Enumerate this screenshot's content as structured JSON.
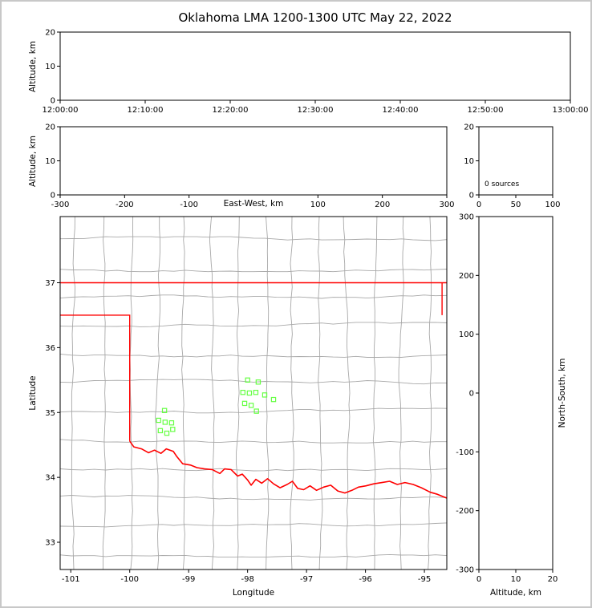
{
  "title": "Oklahoma LMA 1200-1300 UTC May 22, 2022",
  "colors": {
    "county_line": "#a8a8a8",
    "state_border": "#ff0000",
    "river": "#ff0000",
    "station": "#66ff44",
    "axis": "#000000",
    "frame": "#c8c8c8"
  },
  "chart_data": [
    {
      "id": "time_height",
      "type": "scatter",
      "xlabel": "",
      "ylabel": "Altitude, km",
      "x_range": [
        0,
        60
      ],
      "x_tick_pos": [
        0,
        10,
        20,
        30,
        40,
        50,
        60
      ],
      "x_tick_labels": [
        "12:00:00",
        "12:10:00",
        "12:20:00",
        "12:30:00",
        "12:40:00",
        "12:50:00",
        "13:00:00"
      ],
      "y_range": [
        0,
        20
      ],
      "y_tick_pos": [
        0,
        10,
        20
      ],
      "y_tick_labels": [
        "0",
        "10",
        "20"
      ],
      "points": []
    },
    {
      "id": "ew_height",
      "type": "scatter",
      "xlabel": "East-West, km",
      "ylabel": "Altitude, km",
      "x_range": [
        -300,
        300
      ],
      "x_tick_pos": [
        -300,
        -200,
        -100,
        100,
        200,
        300
      ],
      "x_tick_labels": [
        "-300",
        "-200",
        "-100",
        "100",
        "200",
        "300"
      ],
      "y_range": [
        0,
        20
      ],
      "y_tick_pos": [
        0,
        10,
        20
      ],
      "y_tick_labels": [
        "0",
        "10",
        "20"
      ],
      "points": []
    },
    {
      "id": "source_histogram",
      "type": "line",
      "xlabel": "",
      "ylabel": "",
      "annotation": "0 sources",
      "x_range": [
        0,
        100
      ],
      "x_tick_pos": [
        0,
        50,
        100
      ],
      "x_tick_labels": [
        "0",
        "50",
        "100"
      ],
      "y_range": [
        0,
        20
      ],
      "y_tick_pos": [
        0,
        10,
        20
      ],
      "y_tick_labels": [
        "0",
        "10",
        "20"
      ],
      "points": []
    },
    {
      "id": "map",
      "type": "scatter",
      "xlabel": "Longitude",
      "ylabel": "Latitude",
      "x_range": [
        -101.18,
        -94.62
      ],
      "x_tick_pos": [
        -101,
        -100,
        -99,
        -98,
        -97,
        -96,
        -95
      ],
      "x_tick_labels": [
        "-101",
        "-100",
        "-99",
        "-98",
        "-97",
        "-96",
        "-95"
      ],
      "y_range": [
        32.58,
        38.02
      ],
      "y_tick_pos": [
        33,
        34,
        35,
        36,
        37
      ],
      "y_tick_labels": [
        "33",
        "34",
        "35",
        "36",
        "37"
      ],
      "stations_lonlat": [
        [
          -98.0,
          35.5
        ],
        [
          -97.82,
          35.47
        ],
        [
          -98.08,
          35.31
        ],
        [
          -97.97,
          35.3
        ],
        [
          -97.86,
          35.31
        ],
        [
          -97.71,
          35.27
        ],
        [
          -98.05,
          35.14
        ],
        [
          -97.94,
          35.11
        ],
        [
          -97.85,
          35.02
        ],
        [
          -97.56,
          35.2
        ],
        [
          -99.41,
          35.03
        ],
        [
          -99.51,
          34.88
        ],
        [
          -99.4,
          34.85
        ],
        [
          -99.29,
          34.84
        ],
        [
          -99.48,
          34.72
        ],
        [
          -99.37,
          34.68
        ],
        [
          -99.27,
          34.74
        ]
      ],
      "state_borders": [
        [
          [
            -101.18,
            37.0
          ],
          [
            -94.62,
            37.0
          ]
        ],
        [
          [
            -94.7,
            37.0
          ],
          [
            -94.7,
            36.5
          ]
        ],
        [
          [
            -101.18,
            36.5
          ],
          [
            -100.0,
            36.5
          ],
          [
            -100.0,
            34.56
          ]
        ]
      ],
      "red_river": [
        [
          -100.0,
          34.56
        ],
        [
          -99.93,
          34.47
        ],
        [
          -99.8,
          34.44
        ],
        [
          -99.68,
          34.38
        ],
        [
          -99.58,
          34.42
        ],
        [
          -99.47,
          34.37
        ],
        [
          -99.38,
          34.44
        ],
        [
          -99.26,
          34.4
        ],
        [
          -99.2,
          34.32
        ],
        [
          -99.1,
          34.21
        ],
        [
          -98.97,
          34.19
        ],
        [
          -98.86,
          34.15
        ],
        [
          -98.73,
          34.13
        ],
        [
          -98.6,
          34.12
        ],
        [
          -98.47,
          34.06
        ],
        [
          -98.39,
          34.13
        ],
        [
          -98.28,
          34.12
        ],
        [
          -98.17,
          34.02
        ],
        [
          -98.09,
          34.05
        ],
        [
          -98.0,
          33.96
        ],
        [
          -97.94,
          33.88
        ],
        [
          -97.86,
          33.97
        ],
        [
          -97.76,
          33.91
        ],
        [
          -97.66,
          33.98
        ],
        [
          -97.56,
          33.9
        ],
        [
          -97.45,
          33.84
        ],
        [
          -97.33,
          33.89
        ],
        [
          -97.24,
          33.94
        ],
        [
          -97.15,
          33.83
        ],
        [
          -97.05,
          33.81
        ],
        [
          -96.94,
          33.87
        ],
        [
          -96.83,
          33.8
        ],
        [
          -96.71,
          33.85
        ],
        [
          -96.59,
          33.88
        ],
        [
          -96.47,
          33.79
        ],
        [
          -96.35,
          33.76
        ],
        [
          -96.23,
          33.8
        ],
        [
          -96.12,
          33.85
        ],
        [
          -95.99,
          33.87
        ],
        [
          -95.86,
          33.9
        ],
        [
          -95.72,
          33.92
        ],
        [
          -95.59,
          33.94
        ],
        [
          -95.46,
          33.89
        ],
        [
          -95.33,
          33.92
        ],
        [
          -95.19,
          33.89
        ],
        [
          -95.05,
          33.84
        ],
        [
          -94.9,
          33.77
        ],
        [
          -94.78,
          33.74
        ],
        [
          -94.62,
          33.68
        ]
      ],
      "county_lon_lines": [
        -100.93,
        -100.47,
        -100.0,
        -99.54,
        -99.08,
        -98.62,
        -98.16,
        -97.7,
        -97.24,
        -96.78,
        -96.32,
        -95.86,
        -95.4,
        -94.94
      ],
      "county_lat_lines": [
        37.66,
        37.22,
        36.78,
        36.34,
        35.9,
        35.46,
        35.02,
        34.58,
        34.14,
        33.7,
        33.26,
        32.82
      ]
    },
    {
      "id": "ns_height",
      "type": "scatter",
      "xlabel": "Altitude, km",
      "ylabel": "North-South, km",
      "x_range": [
        0,
        20
      ],
      "x_tick_pos": [
        0,
        10,
        20
      ],
      "x_tick_labels": [
        "0",
        "10",
        "20"
      ],
      "y_range": [
        -300,
        300
      ],
      "y_tick_pos": [
        -300,
        -200,
        -100,
        0,
        100,
        200,
        300
      ],
      "y_tick_labels": [
        "-300",
        "-200",
        "-100",
        "0",
        "100",
        "200",
        "300"
      ],
      "points": []
    }
  ]
}
